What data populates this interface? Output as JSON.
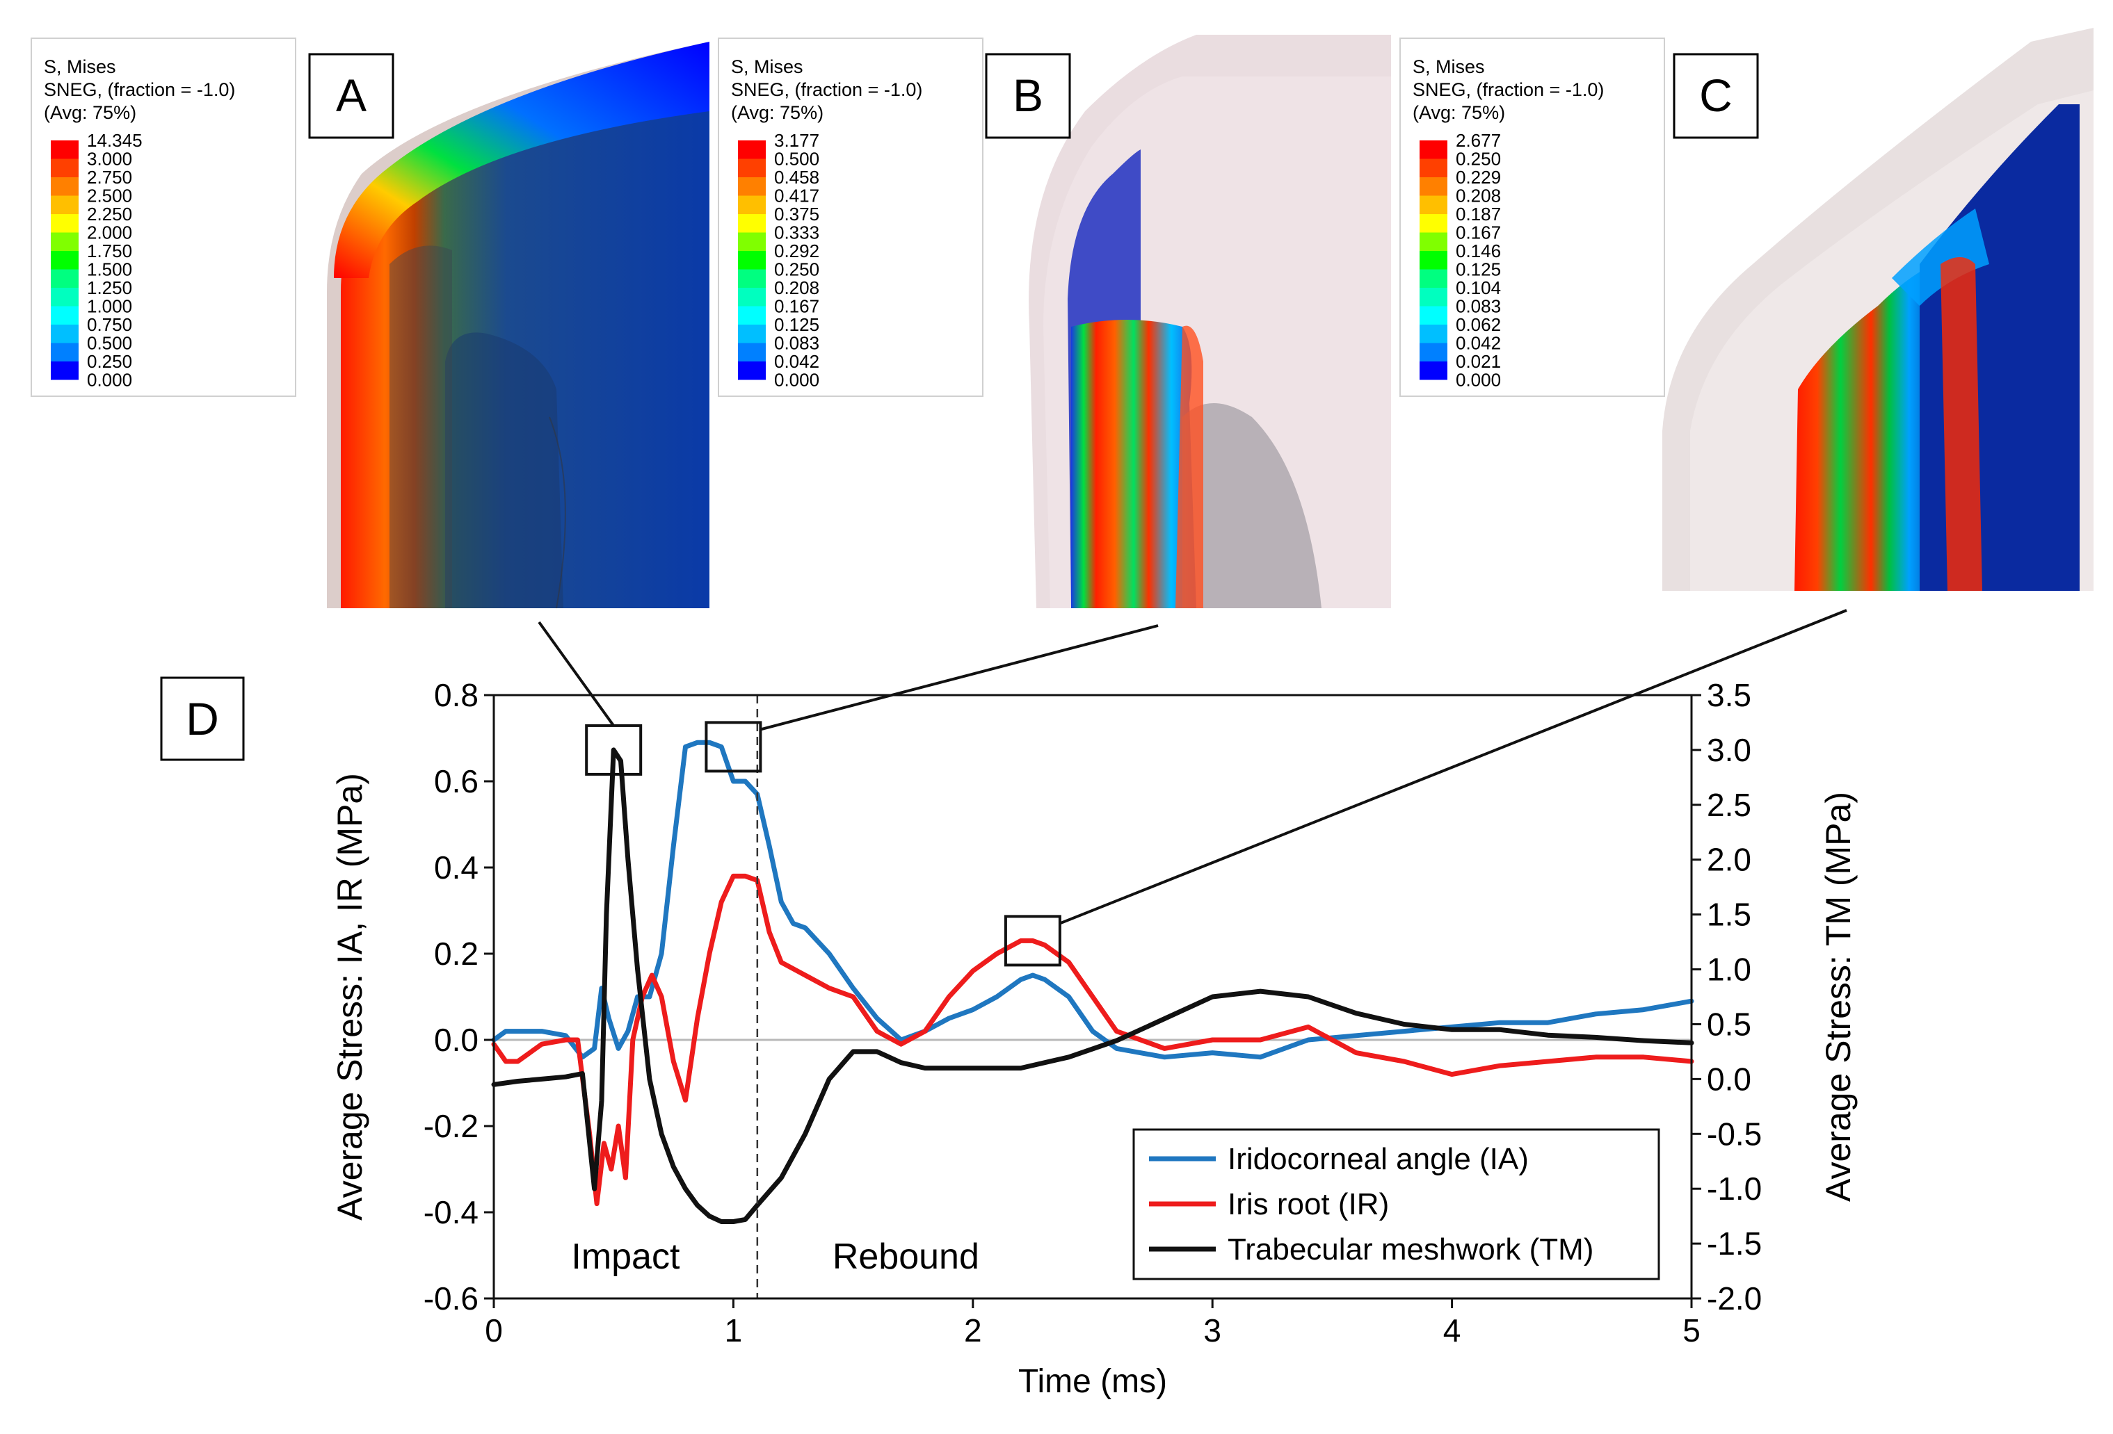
{
  "panels": {
    "A": {
      "letter": "A",
      "legend_header": [
        "S, Mises",
        "SNEG, (fraction = -1.0)",
        "(Avg: 75%)"
      ],
      "legend_values": [
        "14.345",
        "3.000",
        "2.750",
        "2.500",
        "2.250",
        "2.000",
        "1.750",
        "1.500",
        "1.250",
        "1.000",
        "0.750",
        "0.500",
        "0.250",
        "0.000"
      ]
    },
    "B": {
      "letter": "B",
      "legend_header": [
        "S, Mises",
        "SNEG, (fraction = -1.0)",
        "(Avg: 75%)"
      ],
      "legend_values": [
        "3.177",
        "0.500",
        "0.458",
        "0.417",
        "0.375",
        "0.333",
        "0.292",
        "0.250",
        "0.208",
        "0.167",
        "0.125",
        "0.083",
        "0.042",
        "0.000"
      ]
    },
    "C": {
      "letter": "C",
      "legend_header": [
        "S, Mises",
        "SNEG, (fraction = -1.0)",
        "(Avg: 75%)"
      ],
      "legend_values": [
        "2.677",
        "0.250",
        "0.229",
        "0.208",
        "0.187",
        "0.167",
        "0.146",
        "0.125",
        "0.104",
        "0.083",
        "0.062",
        "0.042",
        "0.021",
        "0.000"
      ]
    },
    "D": {
      "letter": "D"
    }
  },
  "contour_colors": [
    "#ff0000",
    "#ff4000",
    "#ff8000",
    "#ffbf00",
    "#ffff00",
    "#80ff00",
    "#00ff00",
    "#00ff80",
    "#00ffbf",
    "#00ffff",
    "#00bfff",
    "#0080ff",
    "#0000ff"
  ],
  "chart_data": {
    "type": "line",
    "xlabel": "Time (ms)",
    "ylabel_left": "Average Stress: IA, IR (MPa)",
    "ylabel_right": "Average Stress: TM (MPa)",
    "xlim": [
      0,
      5
    ],
    "ylim_left": [
      -0.6,
      0.8
    ],
    "ylim_right": [
      -2.0,
      3.5
    ],
    "x_ticks": [
      "0",
      "1",
      "2",
      "3",
      "4",
      "5"
    ],
    "y_ticks_left": [
      "0.8",
      "0.6",
      "0.4",
      "0.2",
      "0.0",
      "-0.2",
      "-0.4",
      "-0.6"
    ],
    "y_ticks_right": [
      "3.5",
      "3.0",
      "2.5",
      "2.0",
      "1.5",
      "1.0",
      "0.5",
      "0.0",
      "-0.5",
      "-1.0",
      "-1.5",
      "-2.0"
    ],
    "annotations": {
      "impact": "Impact",
      "rebound": "Rebound",
      "divider_x": 1.1
    },
    "highlight_boxes": [
      {
        "panel": "A",
        "x": 0.5,
        "y_right": 3.0
      },
      {
        "panel": "B",
        "x": 1.0,
        "y_left": 0.68
      },
      {
        "panel": "C",
        "x": 2.25,
        "y_left": 0.23
      }
    ],
    "series": [
      {
        "name": "Iridocorneal angle (IA)",
        "axis": "left",
        "color": "#1f77c0",
        "x": [
          0,
          0.05,
          0.1,
          0.2,
          0.3,
          0.37,
          0.42,
          0.45,
          0.48,
          0.52,
          0.56,
          0.6,
          0.65,
          0.7,
          0.75,
          0.8,
          0.85,
          0.9,
          0.95,
          1.0,
          1.05,
          1.1,
          1.15,
          1.2,
          1.25,
          1.3,
          1.4,
          1.5,
          1.6,
          1.7,
          1.8,
          1.9,
          2.0,
          2.1,
          2.2,
          2.25,
          2.3,
          2.4,
          2.5,
          2.6,
          2.8,
          3.0,
          3.2,
          3.4,
          3.6,
          3.8,
          4.0,
          4.2,
          4.4,
          4.6,
          4.8,
          5.0
        ],
        "y": [
          0.0,
          0.02,
          0.02,
          0.02,
          0.01,
          -0.04,
          -0.02,
          0.12,
          0.05,
          -0.02,
          0.02,
          0.1,
          0.1,
          0.2,
          0.45,
          0.68,
          0.69,
          0.69,
          0.68,
          0.6,
          0.6,
          0.57,
          0.45,
          0.32,
          0.27,
          0.26,
          0.2,
          0.12,
          0.05,
          0.0,
          0.02,
          0.05,
          0.07,
          0.1,
          0.14,
          0.15,
          0.14,
          0.1,
          0.02,
          -0.02,
          -0.04,
          -0.03,
          -0.04,
          0.0,
          0.01,
          0.02,
          0.03,
          0.04,
          0.04,
          0.06,
          0.07,
          0.09
        ]
      },
      {
        "name": "Iris root (IR)",
        "axis": "left",
        "color": "#ee1c1c",
        "x": [
          0,
          0.05,
          0.1,
          0.2,
          0.3,
          0.35,
          0.4,
          0.43,
          0.46,
          0.49,
          0.52,
          0.55,
          0.58,
          0.62,
          0.66,
          0.7,
          0.75,
          0.8,
          0.85,
          0.9,
          0.95,
          1.0,
          1.05,
          1.1,
          1.15,
          1.2,
          1.3,
          1.4,
          1.5,
          1.6,
          1.7,
          1.8,
          1.9,
          2.0,
          2.1,
          2.2,
          2.25,
          2.3,
          2.4,
          2.5,
          2.6,
          2.8,
          3.0,
          3.2,
          3.4,
          3.6,
          3.8,
          4.0,
          4.2,
          4.4,
          4.6,
          4.8,
          5.0
        ],
        "y": [
          -0.01,
          -0.05,
          -0.05,
          -0.01,
          0.0,
          0.0,
          -0.22,
          -0.38,
          -0.24,
          -0.3,
          -0.2,
          -0.32,
          0.0,
          0.1,
          0.15,
          0.1,
          -0.05,
          -0.14,
          0.05,
          0.2,
          0.32,
          0.38,
          0.38,
          0.37,
          0.25,
          0.18,
          0.15,
          0.12,
          0.1,
          0.02,
          -0.01,
          0.02,
          0.1,
          0.16,
          0.2,
          0.23,
          0.23,
          0.22,
          0.18,
          0.1,
          0.02,
          -0.02,
          0.0,
          0.0,
          0.03,
          -0.03,
          -0.05,
          -0.08,
          -0.06,
          -0.05,
          -0.04,
          -0.04,
          -0.05
        ]
      },
      {
        "name": "Trabecular meshwork (TM)",
        "axis": "right",
        "color": "#111111",
        "x": [
          0,
          0.1,
          0.2,
          0.3,
          0.37,
          0.42,
          0.45,
          0.47,
          0.5,
          0.53,
          0.56,
          0.6,
          0.65,
          0.7,
          0.75,
          0.8,
          0.85,
          0.9,
          0.95,
          1.0,
          1.05,
          1.1,
          1.2,
          1.3,
          1.4,
          1.5,
          1.6,
          1.7,
          1.8,
          2.0,
          2.2,
          2.4,
          2.6,
          2.8,
          3.0,
          3.2,
          3.4,
          3.6,
          3.8,
          4.0,
          4.2,
          4.4,
          4.6,
          4.8,
          5.0
        ],
        "y": [
          -0.05,
          -0.02,
          0.0,
          0.02,
          0.05,
          -1.0,
          -0.2,
          1.5,
          3.0,
          2.9,
          2.0,
          1.0,
          0.0,
          -0.5,
          -0.8,
          -1.0,
          -1.15,
          -1.25,
          -1.3,
          -1.3,
          -1.28,
          -1.15,
          -0.9,
          -0.5,
          0.0,
          0.25,
          0.25,
          0.15,
          0.1,
          0.1,
          0.1,
          0.2,
          0.35,
          0.55,
          0.75,
          0.8,
          0.75,
          0.6,
          0.5,
          0.45,
          0.45,
          0.4,
          0.38,
          0.35,
          0.33
        ]
      }
    ]
  }
}
